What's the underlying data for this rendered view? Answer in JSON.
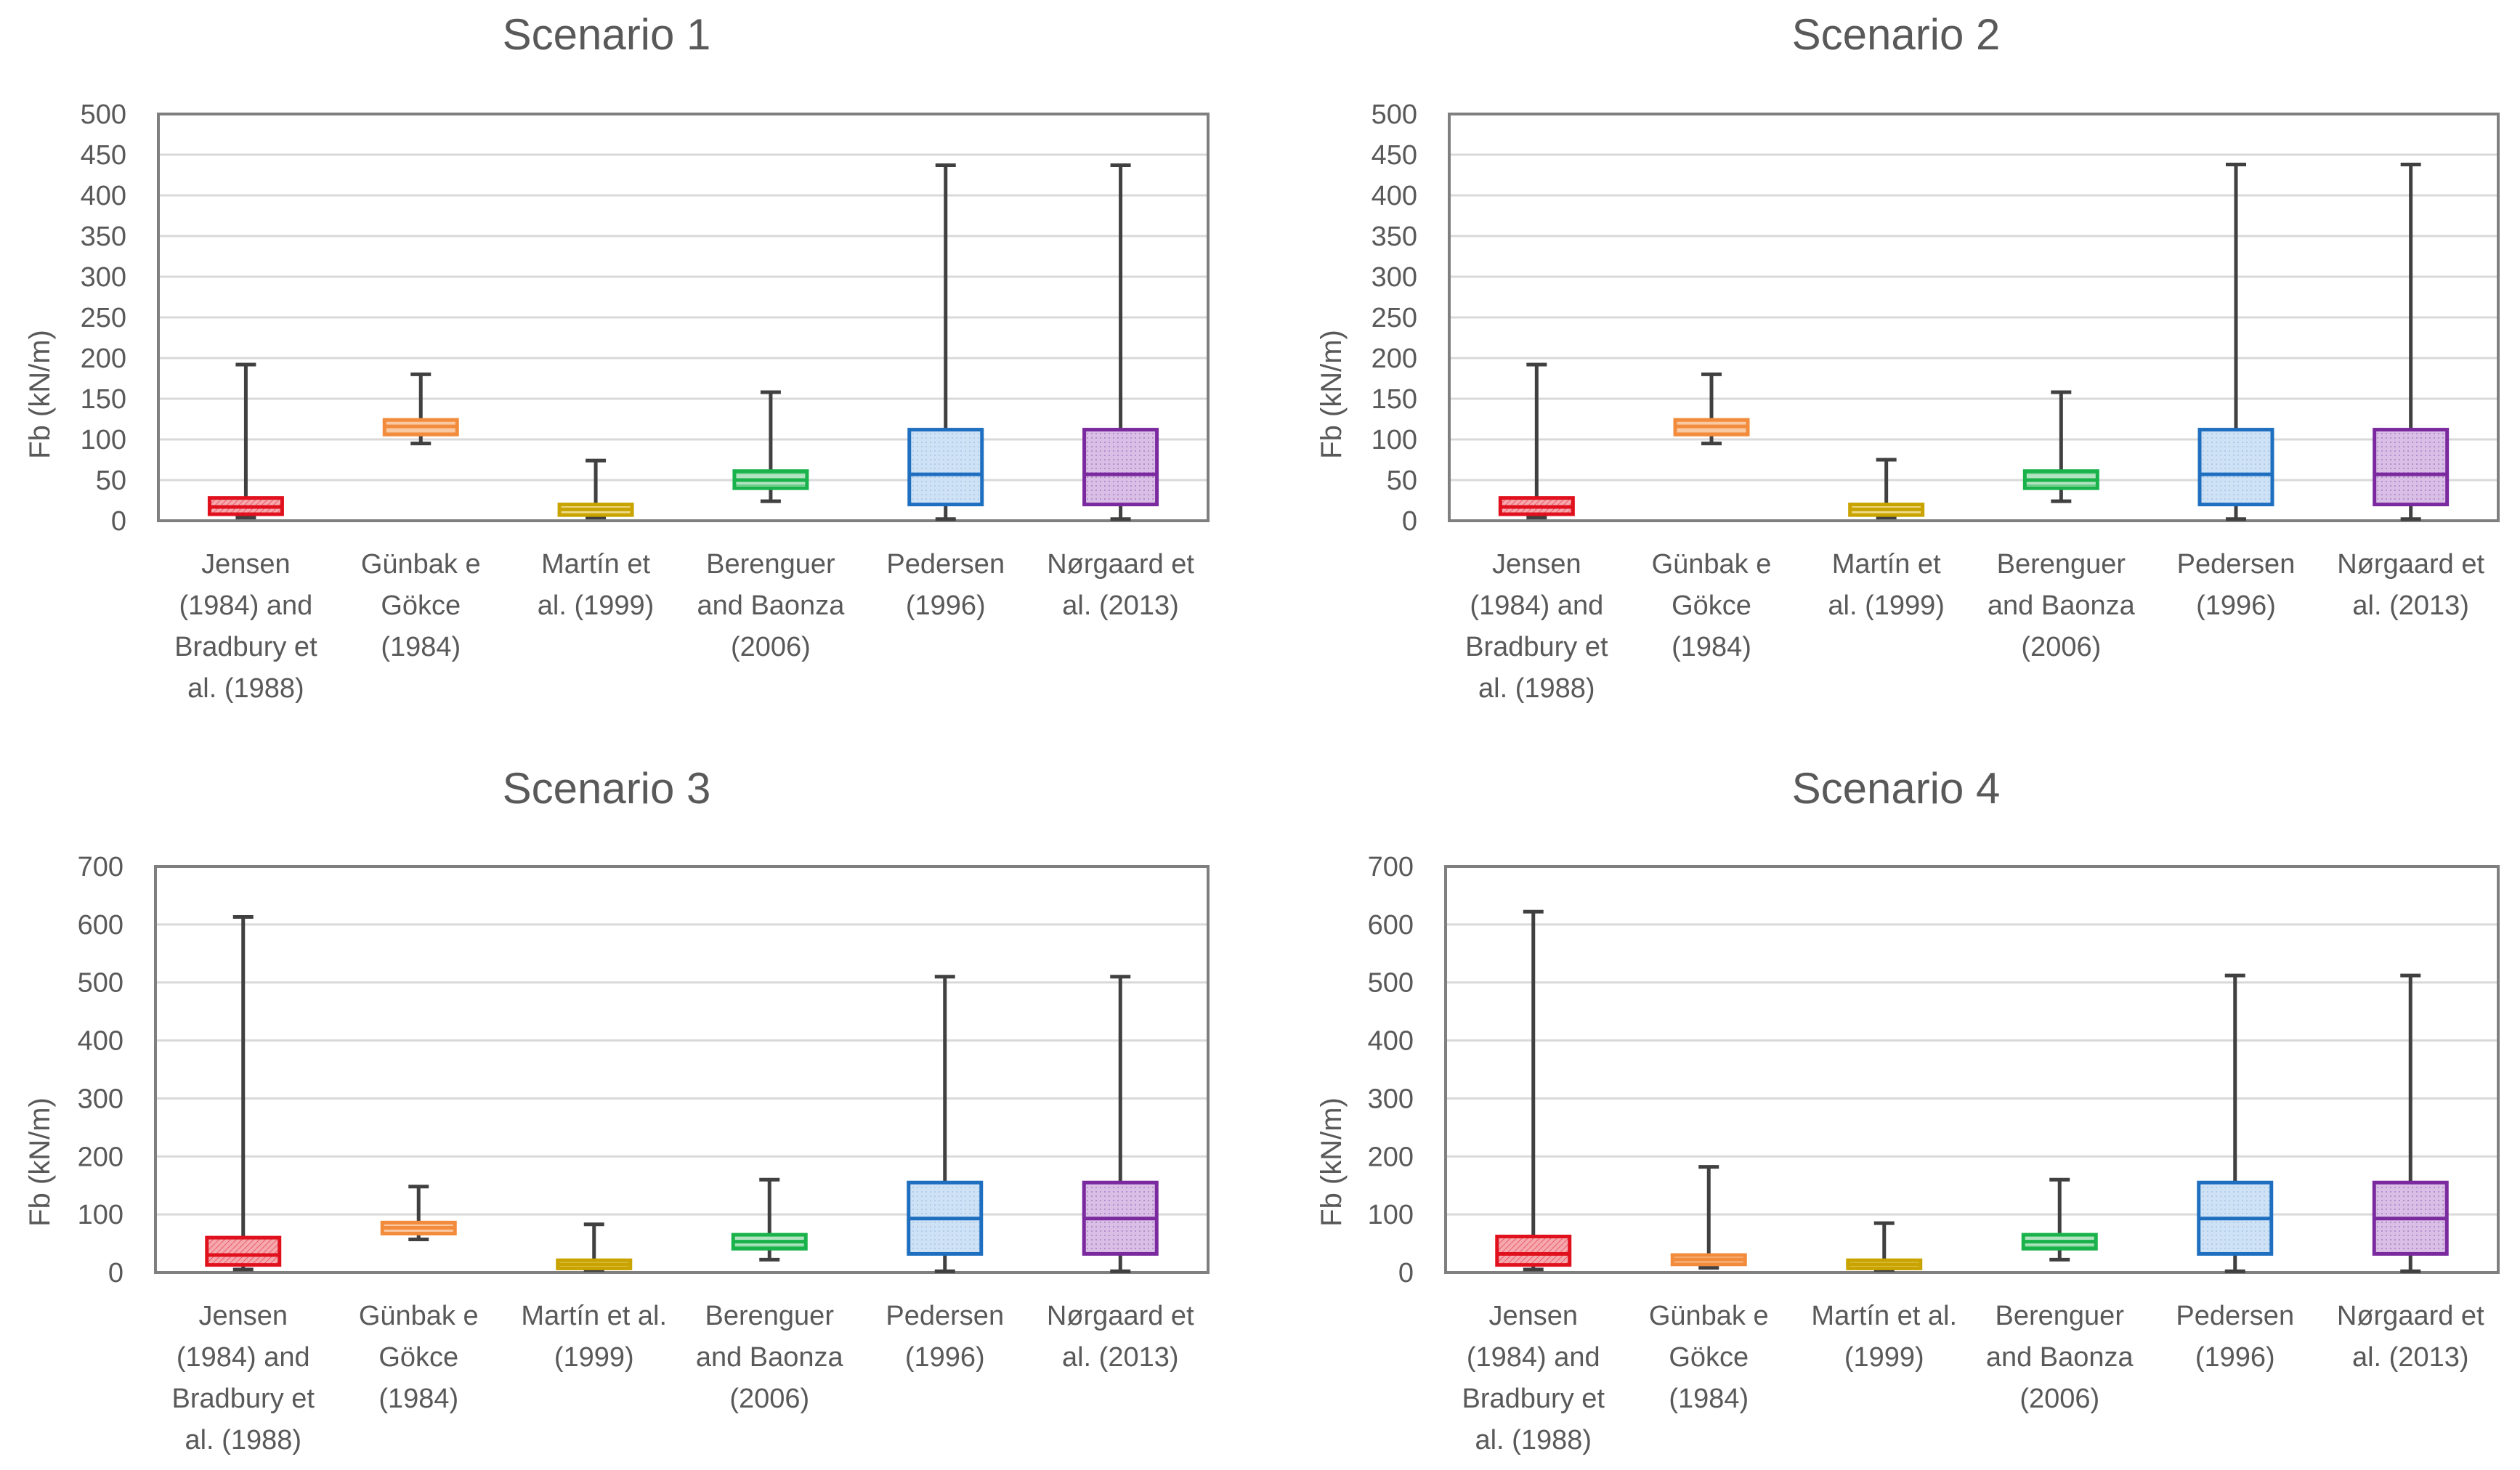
{
  "chart_data": [
    {
      "type": "box",
      "title": "Scenario 1",
      "xlabel": "",
      "ylabel": "Fb (kN/m)",
      "ylim": [
        0,
        500
      ],
      "yticks": [
        0,
        50,
        100,
        150,
        200,
        250,
        300,
        350,
        400,
        450,
        500
      ],
      "grid": true,
      "categories": [
        [
          "Jensen",
          "(1984) and",
          "Bradbury et",
          "al. (1988)"
        ],
        [
          "Günbak e",
          "Gökce",
          "(1984)"
        ],
        [
          "Martín et",
          "al. (1999)"
        ],
        [
          "Berenguer",
          "and Baonza",
          "(2006)"
        ],
        [
          "Pedersen",
          "(1996)"
        ],
        [
          "Nørgaard et",
          "al. (2013)"
        ]
      ],
      "boxes": [
        {
          "min": 4,
          "q1": 8,
          "median": 17,
          "q3": 28,
          "max": 192
        },
        {
          "min": 95,
          "q1": 106,
          "median": 116,
          "q3": 124,
          "max": 180
        },
        {
          "min": 4,
          "q1": 7,
          "median": 14,
          "q3": 20,
          "max": 74
        },
        {
          "min": 24,
          "q1": 40,
          "median": 50,
          "q3": 61,
          "max": 158
        },
        {
          "min": 2,
          "q1": 20,
          "median": 57,
          "q3": 112,
          "max": 437
        },
        {
          "min": 2,
          "q1": 20,
          "median": 57,
          "q3": 112,
          "max": 437
        }
      ]
    },
    {
      "type": "box",
      "title": "Scenario 2",
      "xlabel": "",
      "ylabel": "Fb (kN/m)",
      "ylim": [
        0,
        500
      ],
      "yticks": [
        0,
        50,
        100,
        150,
        200,
        250,
        300,
        350,
        400,
        450,
        500
      ],
      "grid": true,
      "categories": [
        [
          "Jensen",
          "(1984) and",
          "Bradbury et",
          "al. (1988)"
        ],
        [
          "Günbak e",
          "Gökce",
          "(1984)"
        ],
        [
          "Martín et",
          "al. (1999)"
        ],
        [
          "Berenguer",
          "and Baonza",
          "(2006)"
        ],
        [
          "Pedersen",
          "(1996)"
        ],
        [
          "Nørgaard et",
          "al. (2013)"
        ]
      ],
      "boxes": [
        {
          "min": 4,
          "q1": 8,
          "median": 17,
          "q3": 28,
          "max": 192
        },
        {
          "min": 95,
          "q1": 106,
          "median": 116,
          "q3": 124,
          "max": 180
        },
        {
          "min": 4,
          "q1": 7,
          "median": 14,
          "q3": 20,
          "max": 75
        },
        {
          "min": 24,
          "q1": 40,
          "median": 50,
          "q3": 61,
          "max": 158
        },
        {
          "min": 2,
          "q1": 20,
          "median": 57,
          "q3": 112,
          "max": 438
        },
        {
          "min": 2,
          "q1": 20,
          "median": 57,
          "q3": 112,
          "max": 438
        }
      ]
    },
    {
      "type": "box",
      "title": "Scenario 3",
      "xlabel": "",
      "ylabel": "Fb (kN/m)",
      "ylim": [
        0,
        700
      ],
      "yticks": [
        0,
        100,
        200,
        300,
        400,
        500,
        600,
        700
      ],
      "grid": true,
      "categories": [
        [
          "Jensen",
          "(1984) and",
          "Bradbury et",
          "al. (1988)"
        ],
        [
          "Günbak e",
          "Gökce",
          "(1984)"
        ],
        [
          "Martín et al.",
          "(1999)"
        ],
        [
          "Berenguer",
          "and Baonza",
          "(2006)"
        ],
        [
          "Pedersen",
          "(1996)"
        ],
        [
          "Nørgaard et",
          "al. (2013)"
        ]
      ],
      "boxes": [
        {
          "min": 5,
          "q1": 13,
          "median": 30,
          "q3": 60,
          "max": 613
        },
        {
          "min": 57,
          "q1": 67,
          "median": 77,
          "q3": 86,
          "max": 148
        },
        {
          "min": 4,
          "q1": 7,
          "median": 14,
          "q3": 21,
          "max": 83
        },
        {
          "min": 22,
          "q1": 41,
          "median": 53,
          "q3": 65,
          "max": 160
        },
        {
          "min": 2,
          "q1": 32,
          "median": 93,
          "q3": 155,
          "max": 510
        },
        {
          "min": 2,
          "q1": 32,
          "median": 93,
          "q3": 155,
          "max": 510
        }
      ]
    },
    {
      "type": "box",
      "title": "Scenario 4",
      "xlabel": "",
      "ylabel": "Fb (kN/m)",
      "ylim": [
        0,
        700
      ],
      "yticks": [
        0,
        100,
        200,
        300,
        400,
        500,
        600,
        700
      ],
      "grid": true,
      "categories": [
        [
          "Jensen",
          "(1984) and",
          "Bradbury et",
          "al. (1988)"
        ],
        [
          "Günbak e",
          "Gökce",
          "(1984)"
        ],
        [
          "Martín et al.",
          "(1999)"
        ],
        [
          "Berenguer",
          "and Baonza",
          "(2006)"
        ],
        [
          "Pedersen",
          "(1996)"
        ],
        [
          "Nørgaard et",
          "al. (2013)"
        ]
      ],
      "boxes": [
        {
          "min": 5,
          "q1": 13,
          "median": 32,
          "q3": 62,
          "max": 622
        },
        {
          "min": 8,
          "q1": 14,
          "median": 22,
          "q3": 30,
          "max": 182
        },
        {
          "min": 4,
          "q1": 7,
          "median": 14,
          "q3": 21,
          "max": 85
        },
        {
          "min": 22,
          "q1": 41,
          "median": 53,
          "q3": 65,
          "max": 160
        },
        {
          "min": 2,
          "q1": 32,
          "median": 93,
          "q3": 155,
          "max": 512
        },
        {
          "min": 2,
          "q1": 32,
          "median": 93,
          "q3": 155,
          "max": 512
        }
      ]
    }
  ],
  "series_colors": [
    {
      "stroke": "#E0101D",
      "fill": "#F5A9AE"
    },
    {
      "stroke": "#F28C3C",
      "fill": "#F8C9A2"
    },
    {
      "stroke": "#C9A300",
      "fill": "#EFDC8B"
    },
    {
      "stroke": "#19B24B",
      "fill": "#B3E4C1"
    },
    {
      "stroke": "#1F6FC0",
      "fill": "#CFE2F5"
    },
    {
      "stroke": "#7A2A9E",
      "fill": "#D9BFE6"
    }
  ],
  "style": {
    "grid_color": "#D9D9D9",
    "axis_color": "#7F7F7F",
    "whisker_color": "#404040",
    "text_color": "#595959"
  }
}
